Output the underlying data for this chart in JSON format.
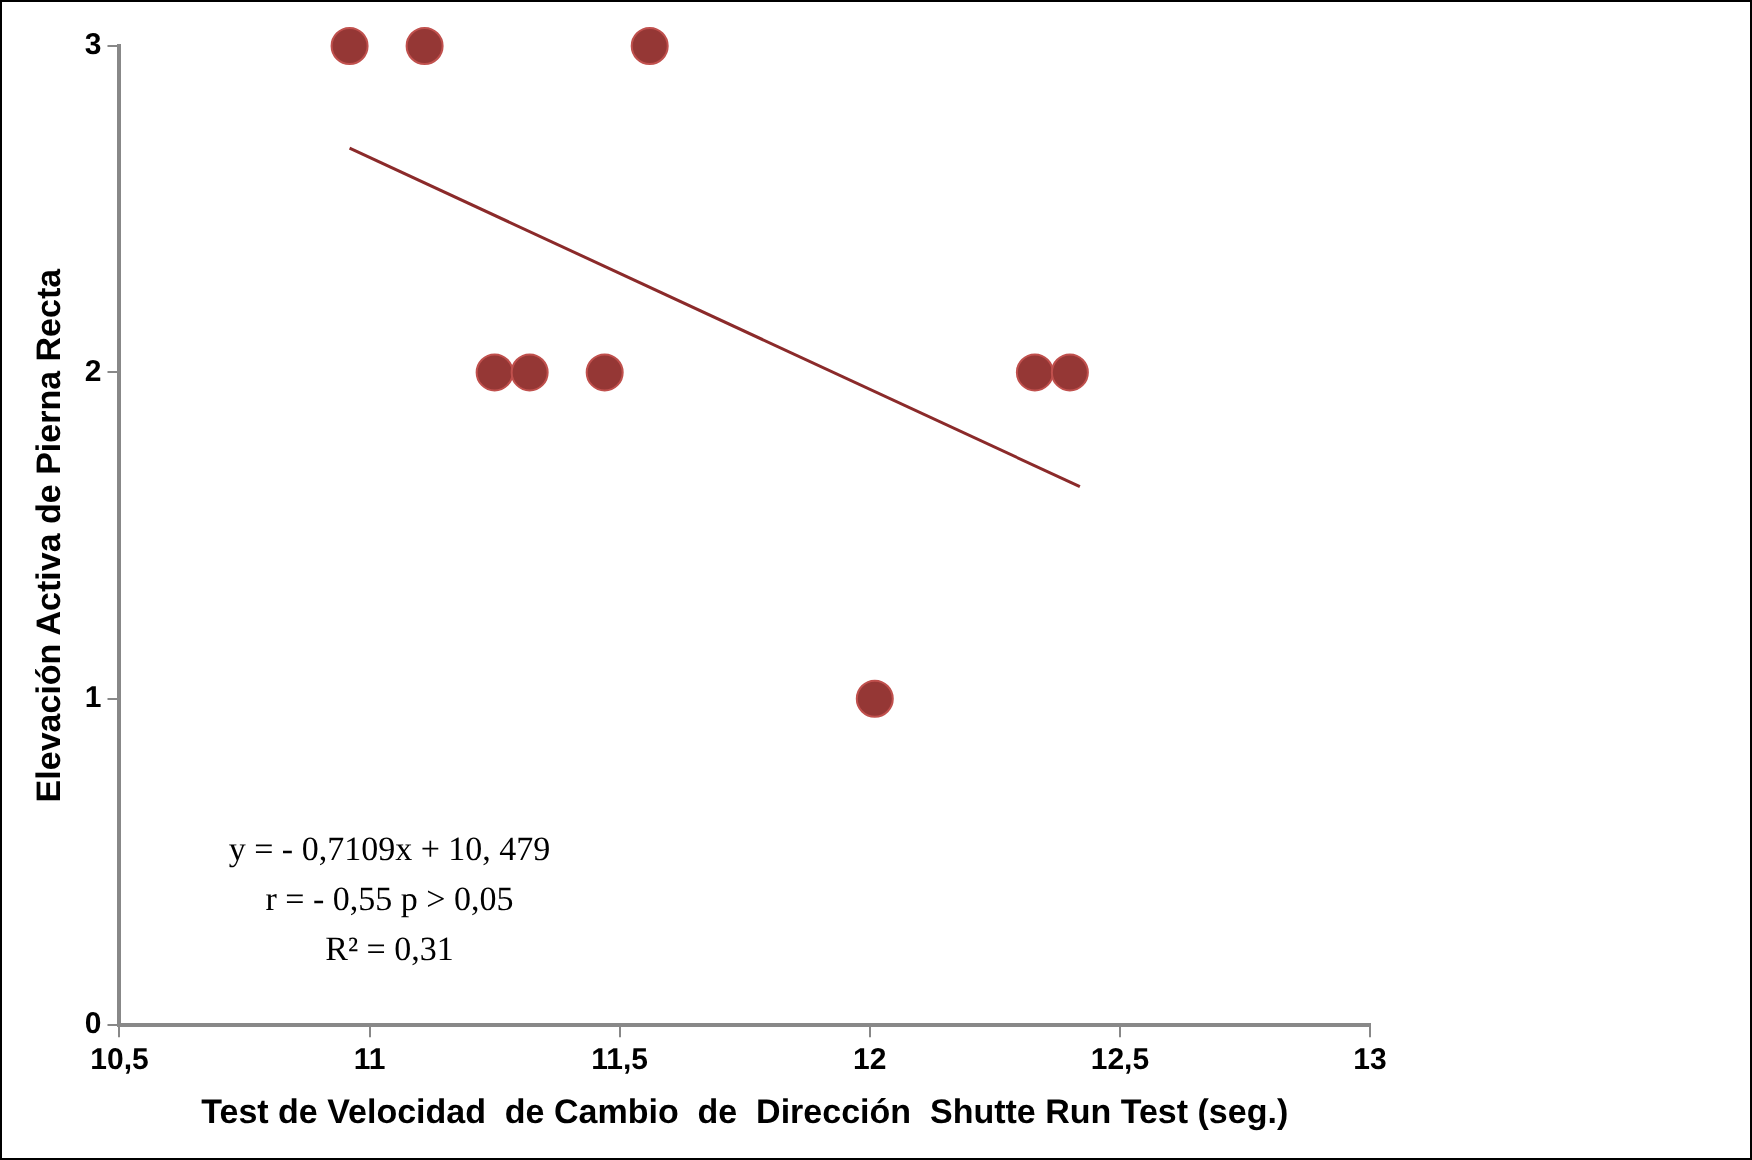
{
  "chart_data": {
    "type": "scatter",
    "xlabel": "Test de Velocidad  de Cambio  de  Dirección  Shutte Run Test (seg.)",
    "ylabel": "Elevación Activa de Pierna Recta",
    "xlim": [
      10.5,
      13
    ],
    "xticks": [
      {
        "value": 10.5,
        "label": "10,5"
      },
      11,
      {
        "value": 11.5,
        "label": "11,5"
      },
      12,
      {
        "value": 12.5,
        "label": "12,5"
      },
      13
    ],
    "ylim": [
      0,
      3
    ],
    "yticks": [
      0,
      1,
      2,
      3
    ],
    "grid": false,
    "legend": false,
    "marker": "circle",
    "series": [
      {
        "color": "#953735",
        "x": [
          10.96,
          11.11,
          11.56,
          11.25,
          11.32,
          11.47,
          12.01,
          12.33,
          12.4
        ],
        "values": [
          3,
          3,
          3,
          2,
          2,
          2,
          1,
          2,
          2
        ]
      },
      {
        "type": "line",
        "color": "#8b2a2a",
        "marker": "none",
        "x": [
          10.96,
          12.42
        ],
        "values": [
          2.687,
          1.65
        ]
      }
    ],
    "annotations": [
      "y = - 0,7109x + 10, 479",
      "r = - 0,55 p > 0,05",
      "R² = 0,31"
    ]
  }
}
